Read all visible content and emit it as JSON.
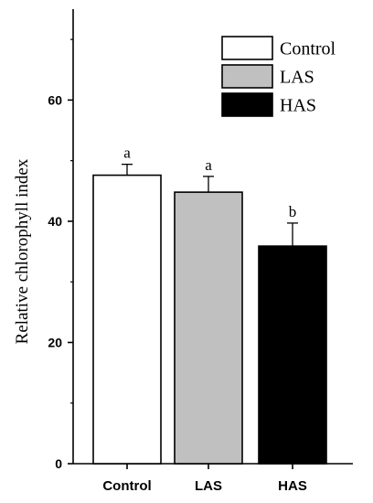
{
  "chart_data": {
    "type": "bar",
    "categories": [
      "Control",
      "LAS",
      "HAS"
    ],
    "values": [
      47.6,
      44.8,
      35.9
    ],
    "errors": [
      1.8,
      2.6,
      3.8
    ],
    "significance": [
      "a",
      "a",
      "b"
    ],
    "colors": [
      "#ffffff",
      "#c0c0c0",
      "#000000"
    ],
    "title": "",
    "xlabel": "",
    "ylabel": "Relative chlorophyll index",
    "ylim": [
      0,
      75
    ],
    "yticks": [
      0,
      20,
      40,
      60
    ],
    "ytick_labels": [
      "0",
      "20",
      "40",
      "60"
    ],
    "grid": false,
    "legend": {
      "position": "top-right",
      "entries": [
        {
          "label": "Control",
          "color": "#ffffff"
        },
        {
          "label": "LAS",
          "color": "#c0c0c0"
        },
        {
          "label": "HAS",
          "color": "#000000"
        }
      ]
    }
  }
}
